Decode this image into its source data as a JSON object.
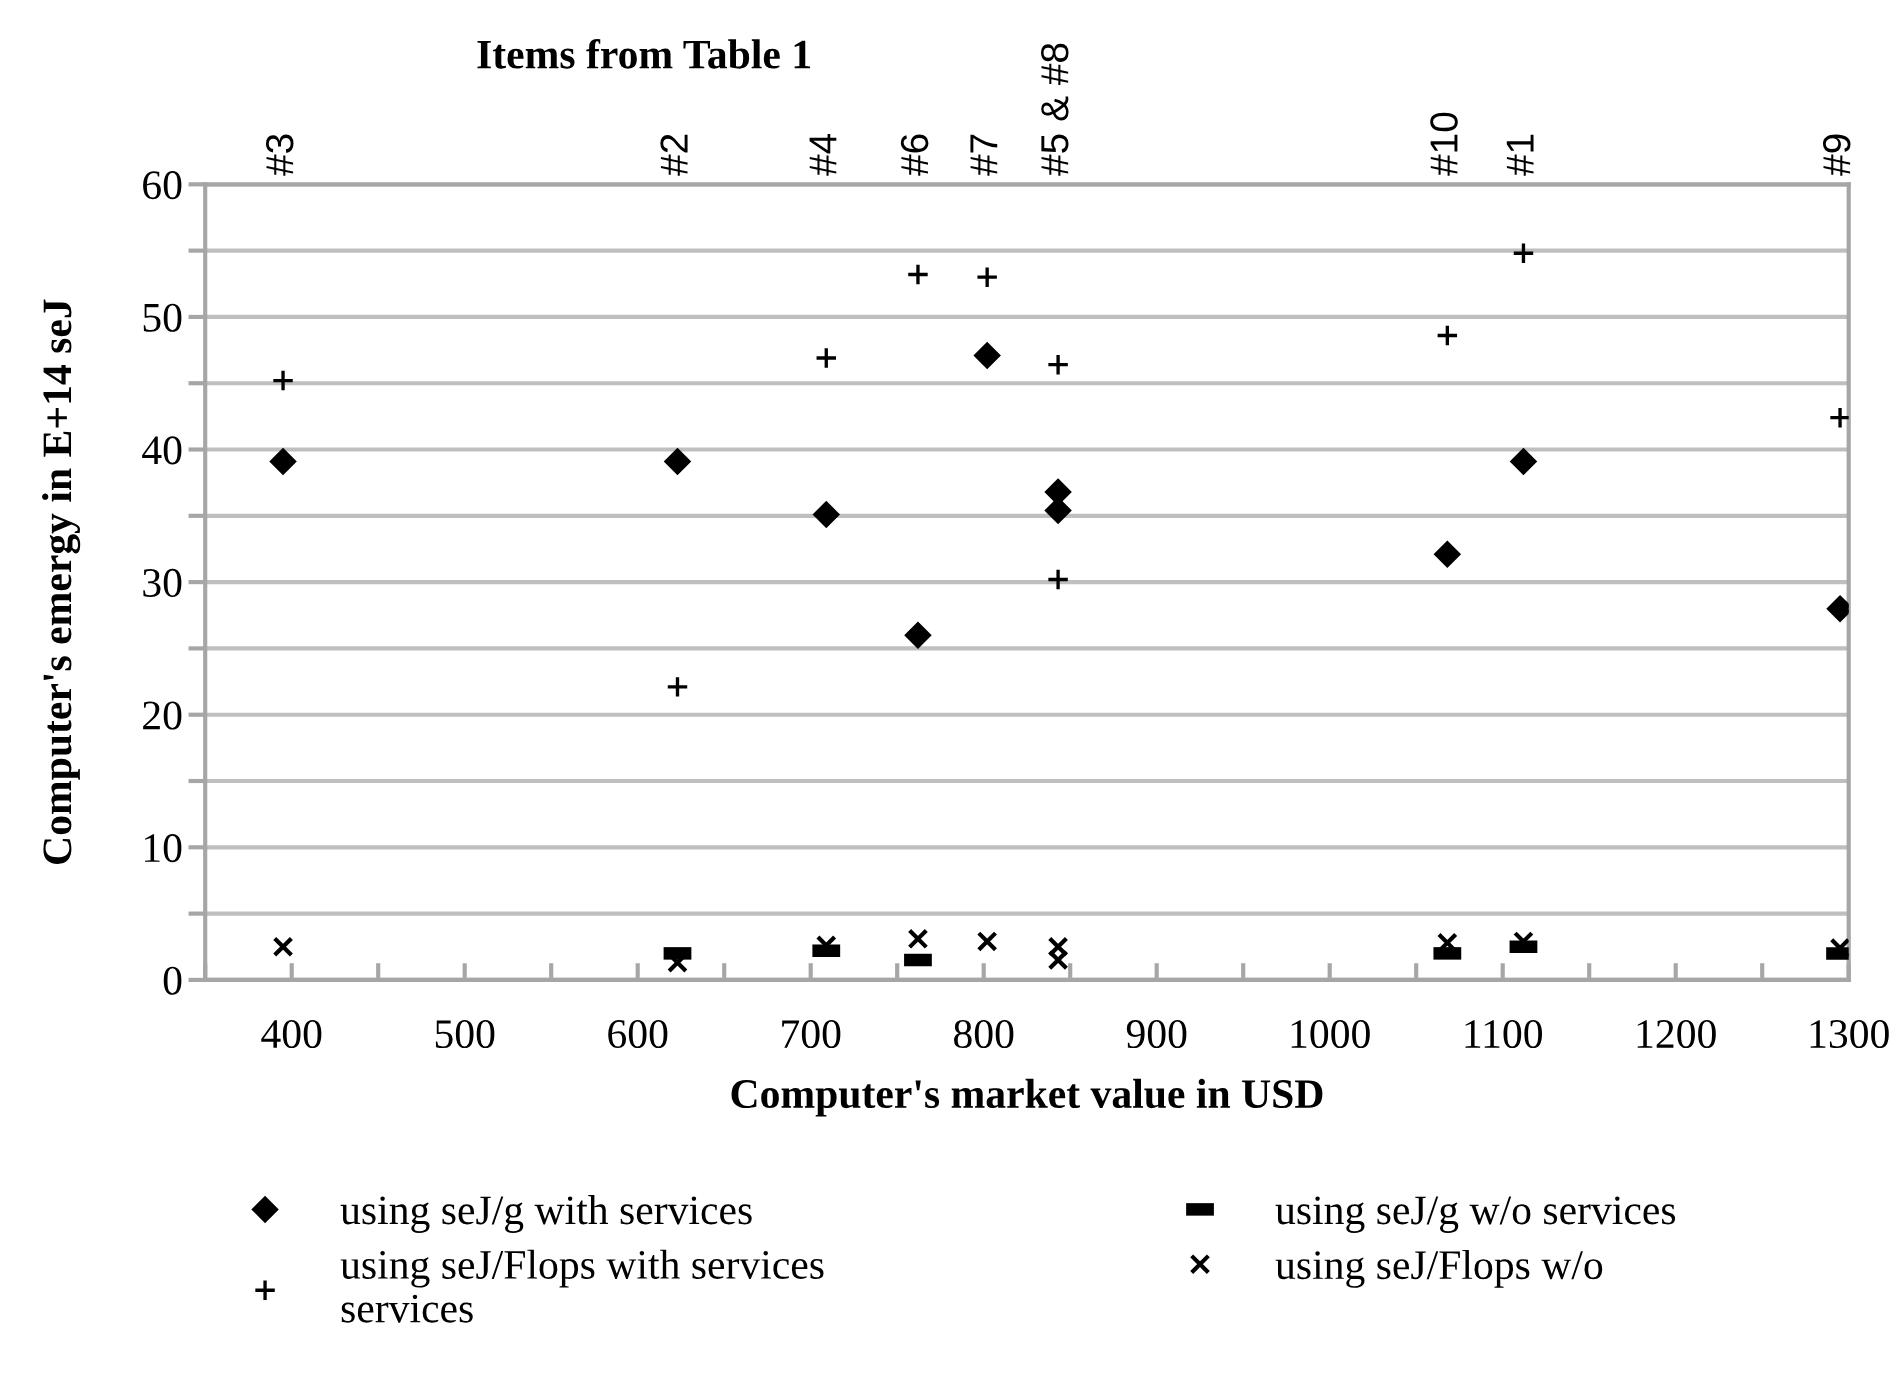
{
  "chart_data": {
    "type": "scatter",
    "title": "Items from Table 1",
    "xlabel": "Computer's market value in USD",
    "ylabel": "Computer's emergy in E+14 seJ",
    "xlim": [
      350,
      1300
    ],
    "xticks": [
      {
        "value": 350,
        "label": null
      },
      400,
      {
        "value": 450,
        "label": null
      },
      500,
      {
        "value": 550,
        "label": null
      },
      600,
      {
        "value": 650,
        "label": null
      },
      700,
      {
        "value": 750,
        "label": null
      },
      800,
      {
        "value": 850,
        "label": null
      },
      900,
      {
        "value": 950,
        "label": null
      },
      1000,
      {
        "value": 1050,
        "label": null
      },
      1100,
      {
        "value": 1150,
        "label": null
      },
      1200,
      {
        "value": 1250,
        "label": null
      },
      1300
    ],
    "annotations": [
      "#3",
      "#2",
      "#4",
      "#6",
      "#7",
      "#5 & #8",
      "#10",
      "#1",
      "#9"
    ],
    "ylim": [
      0,
      60
    ],
    "yticks": [
      0,
      {
        "value": 5,
        "label": null
      },
      10,
      {
        "value": 15,
        "label": null
      },
      20,
      {
        "value": 25,
        "label": null
      },
      30,
      {
        "value": 35,
        "label": null
      },
      40,
      {
        "value": 45,
        "label": null
      },
      50,
      {
        "value": 55,
        "label": null
      },
      60
    ],
    "grid": "y",
    "legend": "bottom",
    "x": [
      395,
      623,
      709,
      762,
      802,
      843,
      843,
      1068,
      1112,
      1295
    ],
    "series": [
      {
        "name": "using seJ/g with services",
        "color": "#000000",
        "marker": "diamond",
        "values": [
          39.1,
          39.1,
          35.1,
          26.0,
          47.1,
          36.8,
          35.4,
          32.1,
          39.1,
          28.0
        ]
      },
      {
        "name": "using seJ/Flops with services\nservices",
        "color": "#000000",
        "marker": "plus",
        "values": [
          45.2,
          22.1,
          46.9,
          53.2,
          53.0,
          46.4,
          30.2,
          48.6,
          54.8,
          42.4
        ]
      },
      {
        "name": "using seJ/g w/o services",
        "color": "#000000",
        "marker": "square",
        "values": [
          null,
          2.0,
          2.2,
          1.5,
          null,
          null,
          null,
          2.0,
          2.5,
          2.0
        ]
      },
      {
        "name": "using seJ/Flops w/o",
        "color": "#000000",
        "marker": "cross",
        "values": [
          2.5,
          1.3,
          2.6,
          3.1,
          2.9,
          2.5,
          1.5,
          2.8,
          2.9,
          2.4
        ]
      }
    ]
  }
}
